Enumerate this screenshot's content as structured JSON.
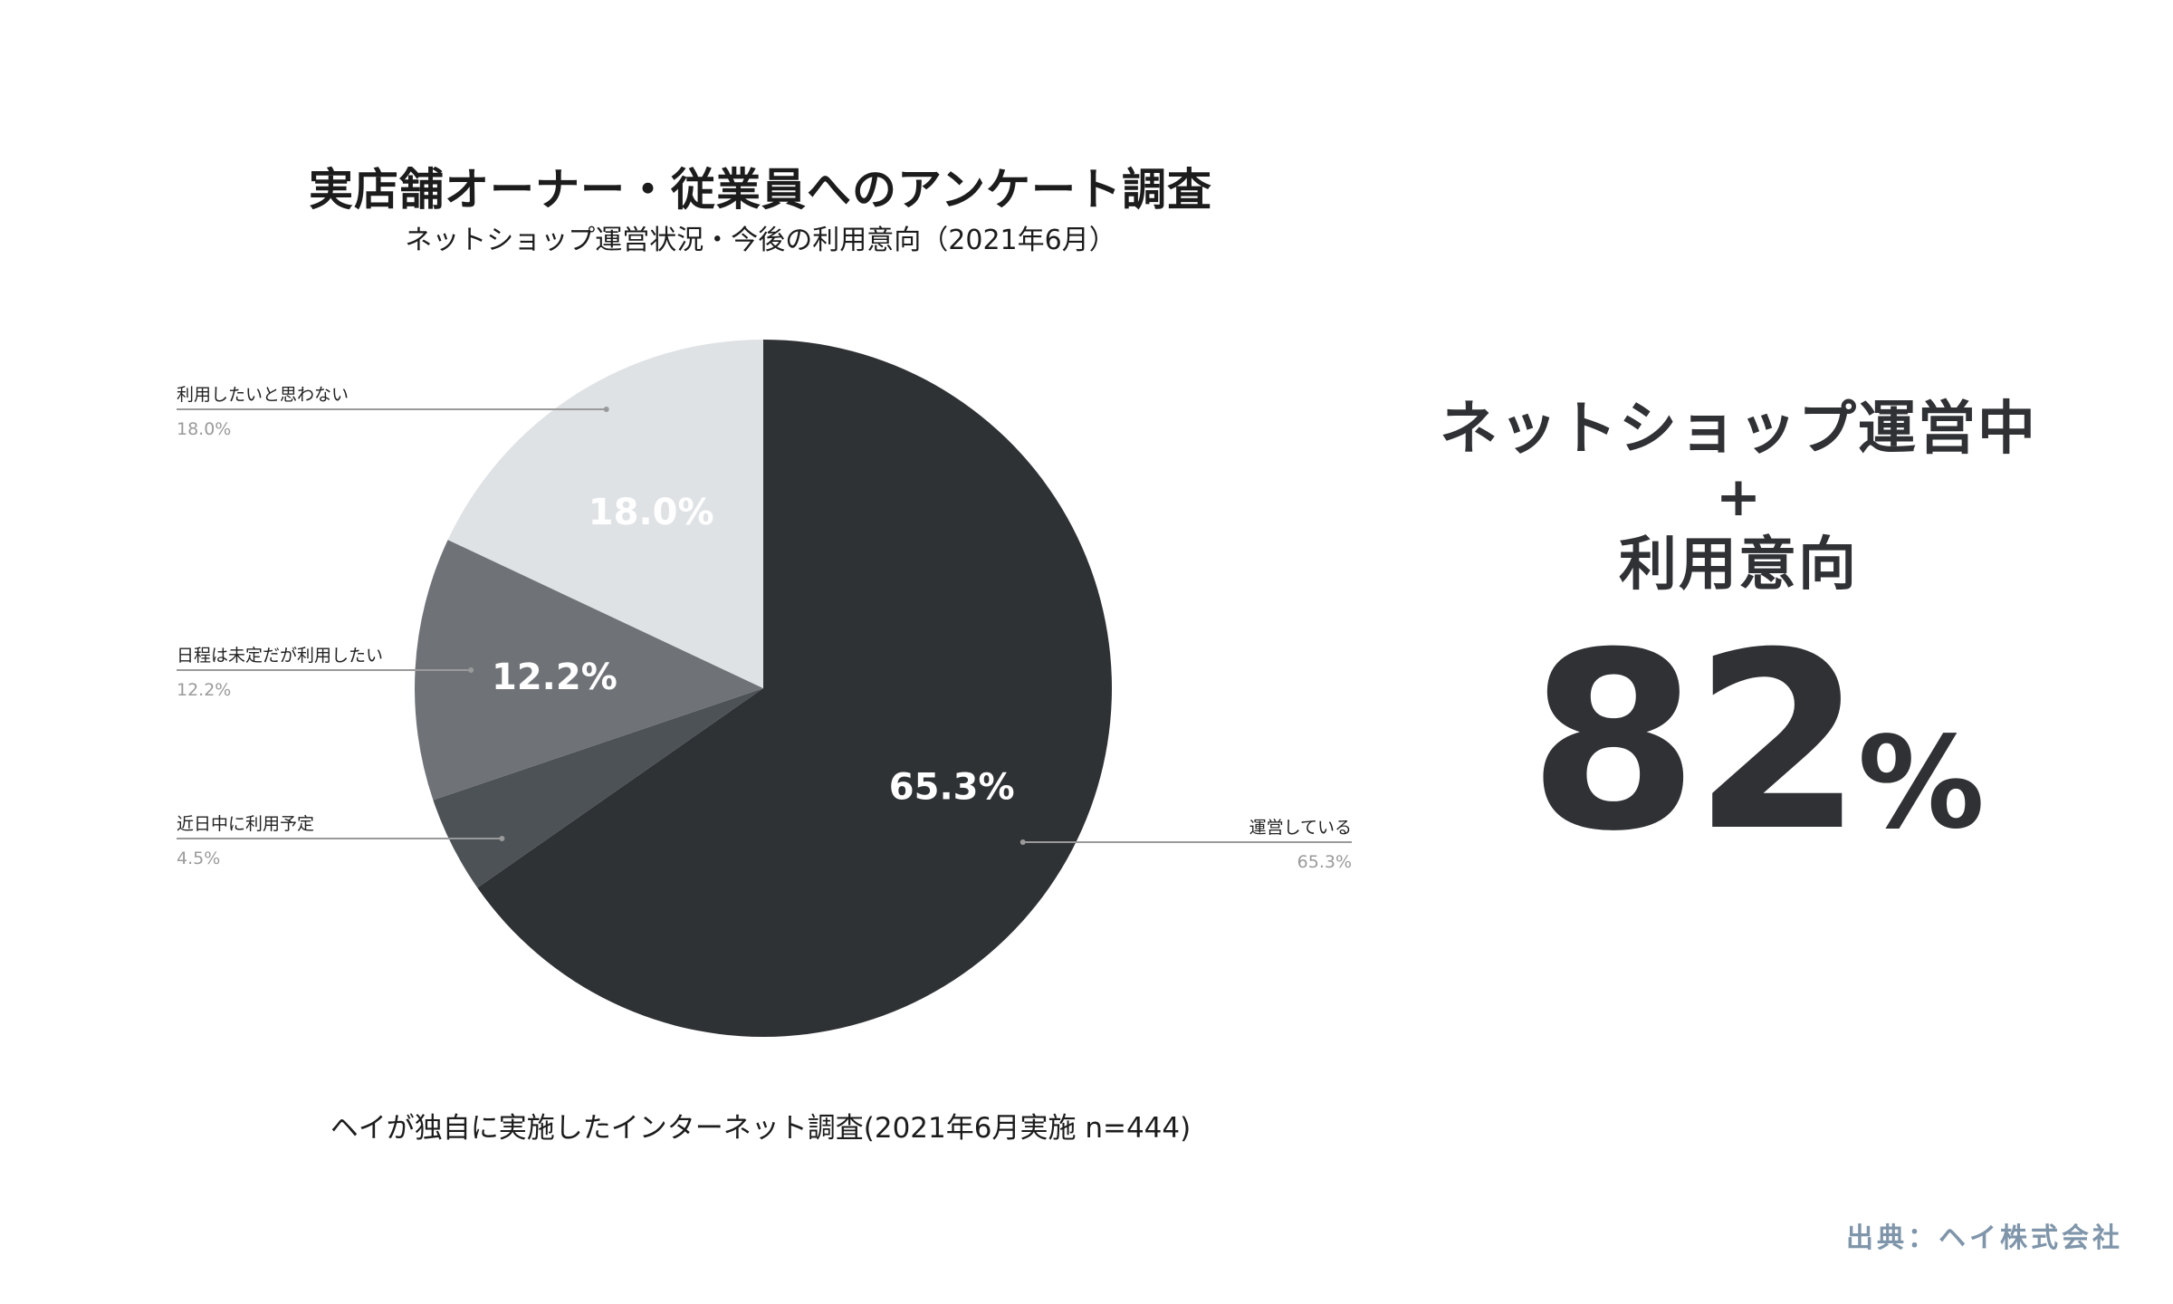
{
  "title": "実店舗オーナー・従業員へのアンケート調査",
  "subtitle": "ネットショップ運営状況・今後の利用意向（2021年6月）",
  "note": "ヘイが独自に実施したインターネット調査(2021年6月実施 n=444)",
  "highlight": {
    "line1": "ネットショップ運営中",
    "plus": "+",
    "line2": "利用意向",
    "value": "82",
    "unit": "%"
  },
  "source": "出典：ヘイ株式会社",
  "chart_data": {
    "type": "pie",
    "start_angle_deg": 0,
    "direction": "clockwise",
    "slices": [
      {
        "label": "運営している",
        "value": 65.3,
        "value_label": "65.3%",
        "color": "#2f3235",
        "label_color": "#ffffff"
      },
      {
        "label": "近日中に利用予定",
        "value": 4.5,
        "value_label": "4.5%",
        "color": "#4d5256",
        "label_color": "#ffffff"
      },
      {
        "label": "日程は未定だが利用したい",
        "value": 12.2,
        "value_label": "12.2%",
        "color": "#6f7377",
        "label_color": "#ffffff"
      },
      {
        "label": "利用したいと思わない",
        "value": 18.0,
        "value_label": "18.0%",
        "color": "#dfe2e5",
        "label_color": "#ffffff"
      }
    ]
  }
}
